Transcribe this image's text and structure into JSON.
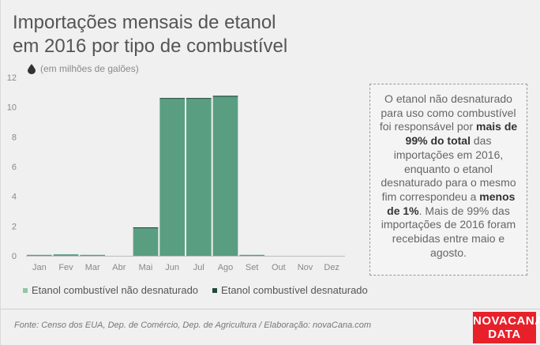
{
  "header": {
    "title_line1": "Importações mensais de etanol",
    "title_line2": "em 2016 por tipo de combustível",
    "unit": "(em milhões de galões)"
  },
  "note": {
    "p1": "O etanol não desnaturado para uso como combustível foi responsável por ",
    "b1": "mais de 99% do total",
    "p2": " das importações em 2016, enquanto o etanol desnaturado para o mesmo fim correspondeu a ",
    "b2": "menos de 1%",
    "p3": ". Mais de 99% das importações de 2016 foram recebidas entre maio e agosto."
  },
  "footer": {
    "source": "Fonte: Censo dos EUA, Dep. de Comércio, Dep. de Agricultura / Elaboração: novaCana.com",
    "logo_line1": "NOVACANA",
    "logo_line2": "DATA"
  },
  "colors": {
    "non_denatured": "#5a9e82",
    "denatured": "#1f4a3c",
    "legend_non_denatured": "#8fc8a4",
    "legend_denatured": "#1f4a3c"
  },
  "chart_data": {
    "type": "bar",
    "stacked": true,
    "categories": [
      "Jan",
      "Fev",
      "Mar",
      "Abr",
      "Mai",
      "Jun",
      "Jul",
      "Ago",
      "Set",
      "Out",
      "Nov",
      "Dez"
    ],
    "series": [
      {
        "name": "Etanol combustível não desnaturado",
        "values": [
          0.05,
          0.1,
          0.05,
          0,
          1.85,
          10.55,
          10.55,
          10.7,
          0.05,
          0,
          0,
          0
        ]
      },
      {
        "name": "Etanol combustível desnaturado",
        "values": [
          0,
          0,
          0,
          0,
          0.05,
          0.05,
          0.05,
          0.05,
          0,
          0,
          0,
          0
        ]
      }
    ],
    "ylim": [
      0,
      12
    ],
    "yticks": [
      "0",
      "2",
      "4",
      "6",
      "8",
      "10",
      "12"
    ],
    "grid": false,
    "legend": "bottom"
  }
}
